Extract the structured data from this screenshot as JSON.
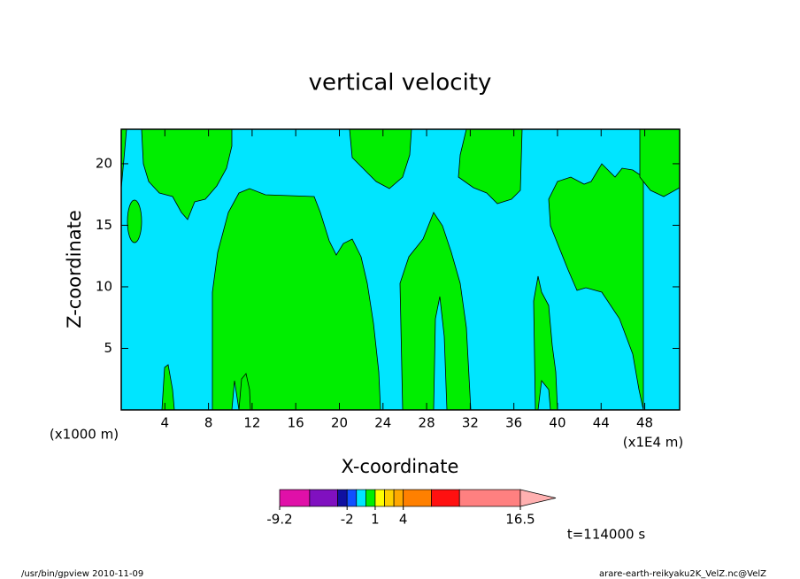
{
  "chart_data": {
    "type": "contour",
    "title": "vertical velocity",
    "xlabel": "X-coordinate",
    "ylabel": "Z-coordinate",
    "x_unit": "(x1000 m)",
    "x_scale_note": "(x1E4 m)",
    "time_label": "t=114000 s",
    "xlim": [
      0,
      51.2
    ],
    "xticks": [
      4,
      8,
      12,
      16,
      20,
      24,
      28,
      32,
      36,
      40,
      44,
      48
    ],
    "ylim": [
      0,
      22.8
    ],
    "yticks": [
      5,
      10,
      15,
      20
    ],
    "colorbar": {
      "levels": [
        -9.2,
        -6,
        -3,
        -2,
        -1,
        0,
        1,
        2,
        3,
        4,
        7,
        10,
        16.5
      ],
      "colors": [
        "#e010a8",
        "#8010c0",
        "#1010a0",
        "#1050ff",
        "#00e5ff",
        "#00ee00",
        "#ffff00",
        "#ffd000",
        "#ffa800",
        "#ff8000",
        "#ff1010",
        "#ff8080"
      ],
      "over_color": "#ffb0b0",
      "ticks": [
        -9.2,
        -2,
        1,
        4,
        16.5
      ]
    },
    "footer_left": "/usr/bin/gpview  2010-11-09",
    "footer_right": "arare-earth-reikyaku2K_VelZ.nc@VelZ"
  }
}
